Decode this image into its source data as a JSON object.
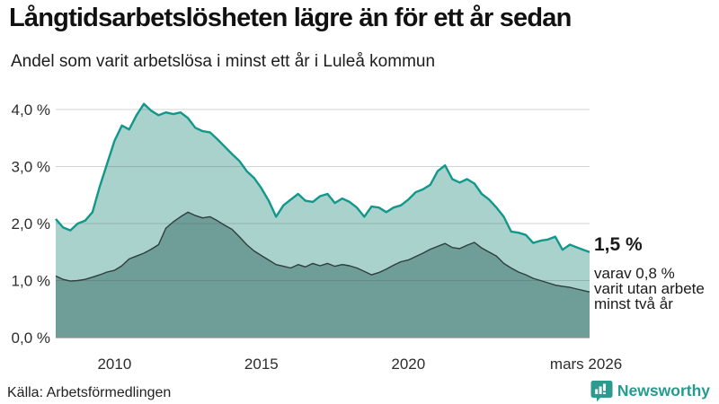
{
  "header": {
    "title": "Långtidsarbetslösheten lägre än för ett år sedan",
    "subtitle": "Andel som varit arbetslösa i minst ett år i Luleå kommun"
  },
  "annotation": {
    "value_label": "1,5 %",
    "lines": [
      "varav 0,8 %",
      "varit utan arbete",
      "minst två år"
    ]
  },
  "footer": {
    "source": "Källa: Arbetsförmedlingen",
    "brand": "Newsworthy"
  },
  "colors": {
    "outer_stroke": "#12988a",
    "outer_fill": "#aad2cc",
    "inner_stroke": "#2f3e3c",
    "inner_fill": "#6f9e99",
    "gridline": "#d9d9d9",
    "baseline": "#8f8f8f",
    "brand_teal": "#279a8f",
    "text": "#1a1a1a"
  },
  "chart_data": {
    "type": "area",
    "mode": "overlay-subset",
    "title": "Långtidsarbetslösheten lägre än för ett år sedan",
    "subtitle": "Andel som varit arbetslösa i minst ett år i Luleå kommun",
    "xlabel": "",
    "ylabel": "",
    "xlim": [
      2008.0,
      2026.17
    ],
    "ylim": [
      0,
      4.3
    ],
    "grid": true,
    "legend": "none",
    "end_value_labels": {
      "outer": "1,5 %",
      "inner": "0,8 %"
    },
    "y_ticks": [
      {
        "v": 0,
        "label": "0,0 %"
      },
      {
        "v": 1,
        "label": "1,0 %"
      },
      {
        "v": 2,
        "label": "2,0 %"
      },
      {
        "v": 3,
        "label": "3,0 %"
      },
      {
        "v": 4,
        "label": "4,0 %"
      }
    ],
    "x_ticks": [
      {
        "x": 2010,
        "label": "2010"
      },
      {
        "x": 2015,
        "label": "2015"
      },
      {
        "x": 2020,
        "label": "2020"
      },
      {
        "x": 2026.05,
        "label": "mars 2026"
      }
    ],
    "x": [
      2008.0,
      2008.25,
      2008.5,
      2008.75,
      2009.0,
      2009.25,
      2009.5,
      2009.75,
      2010.0,
      2010.25,
      2010.5,
      2010.75,
      2011.0,
      2011.25,
      2011.5,
      2011.75,
      2012.0,
      2012.25,
      2012.5,
      2012.75,
      2013.0,
      2013.25,
      2013.5,
      2013.75,
      2014.0,
      2014.25,
      2014.5,
      2014.75,
      2015.0,
      2015.25,
      2015.5,
      2015.75,
      2016.0,
      2016.25,
      2016.5,
      2016.75,
      2017.0,
      2017.25,
      2017.5,
      2017.75,
      2018.0,
      2018.25,
      2018.5,
      2018.75,
      2019.0,
      2019.25,
      2019.5,
      2019.75,
      2020.0,
      2020.25,
      2020.5,
      2020.75,
      2021.0,
      2021.25,
      2021.5,
      2021.75,
      2022.0,
      2022.25,
      2022.5,
      2022.75,
      2023.0,
      2023.25,
      2023.5,
      2023.75,
      2024.0,
      2024.25,
      2024.5,
      2024.75,
      2025.0,
      2025.25,
      2025.5,
      2025.75,
      2026.0,
      2026.17
    ],
    "series": [
      {
        "name": "Arbetslösa minst ett år",
        "values": [
          2.08,
          1.93,
          1.88,
          2.0,
          2.05,
          2.2,
          2.65,
          3.05,
          3.45,
          3.72,
          3.65,
          3.9,
          4.1,
          3.98,
          3.9,
          3.95,
          3.92,
          3.95,
          3.85,
          3.68,
          3.62,
          3.6,
          3.48,
          3.35,
          3.22,
          3.1,
          2.92,
          2.8,
          2.62,
          2.4,
          2.12,
          2.32,
          2.42,
          2.52,
          2.4,
          2.38,
          2.48,
          2.52,
          2.36,
          2.44,
          2.38,
          2.28,
          2.12,
          2.3,
          2.28,
          2.2,
          2.28,
          2.32,
          2.42,
          2.55,
          2.6,
          2.68,
          2.92,
          3.02,
          2.78,
          2.72,
          2.78,
          2.7,
          2.52,
          2.42,
          2.28,
          2.12,
          1.86,
          1.84,
          1.8,
          1.66,
          1.7,
          1.72,
          1.77,
          1.54,
          1.63,
          1.58,
          1.53,
          1.5
        ]
      },
      {
        "name": "Arbetslösa minst två år",
        "values": [
          1.08,
          1.02,
          0.99,
          1.0,
          1.02,
          1.06,
          1.1,
          1.15,
          1.18,
          1.26,
          1.38,
          1.43,
          1.48,
          1.55,
          1.63,
          1.92,
          2.03,
          2.12,
          2.2,
          2.14,
          2.1,
          2.12,
          2.05,
          1.97,
          1.9,
          1.77,
          1.63,
          1.52,
          1.44,
          1.36,
          1.28,
          1.25,
          1.22,
          1.28,
          1.24,
          1.3,
          1.26,
          1.3,
          1.25,
          1.28,
          1.26,
          1.22,
          1.16,
          1.1,
          1.14,
          1.2,
          1.27,
          1.33,
          1.36,
          1.42,
          1.48,
          1.55,
          1.6,
          1.65,
          1.58,
          1.56,
          1.62,
          1.67,
          1.57,
          1.5,
          1.43,
          1.3,
          1.22,
          1.15,
          1.1,
          1.04,
          1.0,
          0.96,
          0.92,
          0.9,
          0.88,
          0.85,
          0.82,
          0.8
        ]
      }
    ]
  }
}
